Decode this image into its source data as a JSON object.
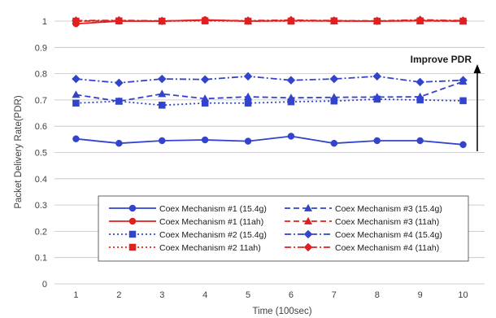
{
  "chart_data": {
    "type": "line",
    "title": "",
    "xlabel": "Time (100sec)",
    "ylabel": "Packet Delivery Rate(PDR)",
    "x": [
      1,
      2,
      3,
      4,
      5,
      6,
      7,
      8,
      9,
      10
    ],
    "xlim": [
      0.5,
      10.5
    ],
    "ylim": [
      0,
      1
    ],
    "yticks": [
      "0",
      "0.1",
      "0.2",
      "0.3",
      "0.4",
      "0.5",
      "0.6",
      "0.7",
      "0.8",
      "0.9",
      "1"
    ],
    "xticks": [
      "1",
      "2",
      "3",
      "4",
      "5",
      "6",
      "7",
      "8",
      "9",
      "10"
    ],
    "grid": "horizontal",
    "legend_position": "bottom-center",
    "series": [
      {
        "name": "Coex Mechanism #1 (15.4g)",
        "color": "#3344cc",
        "dash": "solid",
        "marker": "circle",
        "values": [
          0.552,
          0.535,
          0.545,
          0.548,
          0.543,
          0.562,
          0.535,
          0.545,
          0.545,
          0.53
        ]
      },
      {
        "name": "Coex Mechanism #3 (15.4g)",
        "color": "#3344cc",
        "dash": "dashed",
        "marker": "triangle",
        "values": [
          0.72,
          0.695,
          0.723,
          0.705,
          0.712,
          0.708,
          0.71,
          0.711,
          0.712,
          0.77
        ]
      },
      {
        "name": "Coex Mechanism #1 (11ah)",
        "color": "#e02020",
        "dash": "solid",
        "marker": "circle",
        "values": [
          0.99,
          1.0,
          1.0,
          1.005,
          1.0,
          1.002,
          1.001,
          1.0,
          1.002,
          1.001
        ]
      },
      {
        "name": "Coex Mechanism #3 (11ah)",
        "color": "#e02020",
        "dash": "dashed",
        "marker": "triangle",
        "values": [
          1.0,
          1.002,
          1.0,
          1.004,
          1.0,
          1.002,
          1.0,
          1.001,
          1.001,
          1.0
        ]
      },
      {
        "name": "Coex Mechanism #2 (15.4g)",
        "color": "#3344cc",
        "dash": "dotted",
        "marker": "square",
        "values": [
          0.688,
          0.695,
          0.68,
          0.688,
          0.688,
          0.693,
          0.696,
          0.703,
          0.7,
          0.697
        ]
      },
      {
        "name": "Coex Mechanism #4 (15.4g)",
        "color": "#3344cc",
        "dash": "dashdot",
        "marker": "diamond",
        "values": [
          0.78,
          0.765,
          0.78,
          0.778,
          0.79,
          0.775,
          0.78,
          0.79,
          0.768,
          0.775
        ]
      },
      {
        "name": "Coex Mechanism #2 11ah)",
        "color": "#e02020",
        "dash": "dotted",
        "marker": "square",
        "values": [
          1.0,
          1.001,
          1.0,
          1.001,
          1.0,
          1.0,
          1.001,
          1.0,
          1.001,
          1.0
        ]
      },
      {
        "name": "Coex Mechanism #4 (11ah)",
        "color": "#e02020",
        "dash": "dashdot",
        "marker": "diamond",
        "values": [
          1.002,
          1.003,
          1.001,
          1.003,
          1.002,
          1.004,
          1.002,
          1.001,
          1.005,
          1.002
        ]
      }
    ],
    "annotations": [
      {
        "text": "Improve PDR",
        "arrow": "up"
      }
    ]
  }
}
